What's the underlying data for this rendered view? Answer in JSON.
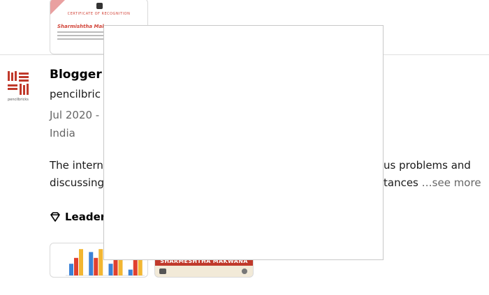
{
  "entry": {
    "title": "Blogger",
    "company": "pencilbric",
    "dates": "Jul 2020 -",
    "location": "India",
    "description_line1_left": "The intern",
    "description_line1_right": "us problems and",
    "description_line2_left": "discussing",
    "description_line2_right": "tances",
    "see_more": "…see more"
  },
  "logo": {
    "caption": "pencilbricks"
  },
  "skills": {
    "label": "Leader"
  },
  "certificate_top": {
    "heading": "CERTIFICATE OF RECOGNITION",
    "name": "Sharmishtha Makwana"
  },
  "certificate_bottom": {
    "name": "SHARMESHTHA MAKWANA"
  },
  "chart_data": {
    "type": "bar",
    "categories": [
      "",
      "",
      "",
      ""
    ],
    "series": [
      {
        "name": "",
        "values": [
          2,
          4,
          2,
          1
        ]
      },
      {
        "name": "",
        "values": [
          3,
          3,
          3,
          3
        ]
      },
      {
        "name": "",
        "values": [
          4.5,
          4.5,
          4.5,
          4.5
        ]
      }
    ],
    "ylim": [
      0,
      5
    ],
    "colors": [
      "#3b82d6",
      "#e0402f",
      "#f2b632"
    ]
  },
  "colors": {
    "accent": "#d2453a",
    "muted": "#666666"
  }
}
